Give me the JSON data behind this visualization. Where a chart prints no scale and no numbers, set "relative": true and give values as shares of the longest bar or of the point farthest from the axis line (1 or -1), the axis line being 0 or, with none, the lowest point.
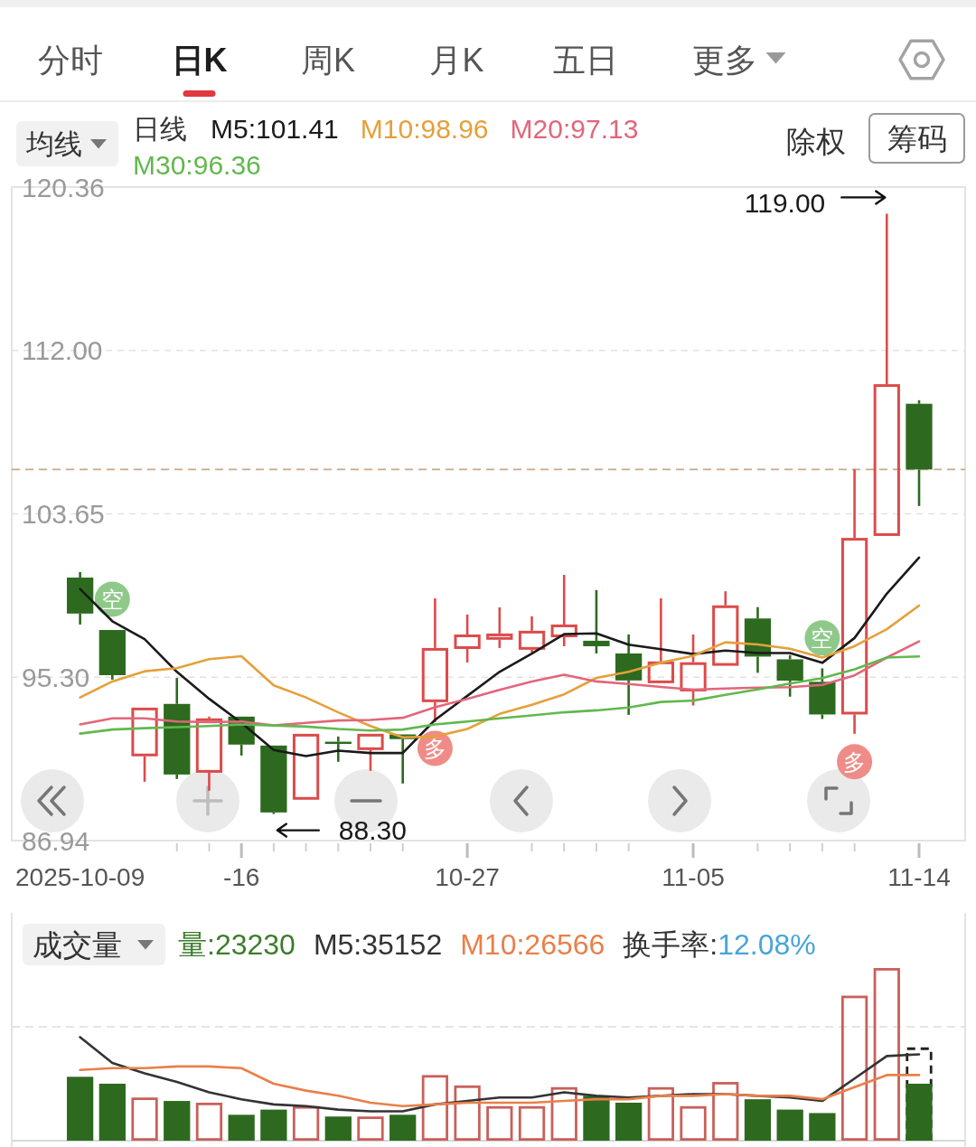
{
  "chart_data": [
    {
      "type": "other",
      "annotations": [
        "分时",
        "日K",
        "周K",
        "月K",
        "五日",
        "更多"
      ]
    },
    {
      "type": "candlestick",
      "categories": [
        "2025-10-09",
        null,
        null,
        null,
        null,
        "-16",
        null,
        null,
        null,
        null,
        null,
        null,
        "10-27",
        null,
        null,
        null,
        null,
        null,
        null,
        "11-05",
        null,
        null,
        null,
        null,
        null,
        null,
        "11-14"
      ],
      "ohlc": [
        [
          100.39,
          100.67,
          97.99,
          98.55
        ],
        [
          97.71,
          97.71,
          95.17,
          95.4
        ],
        [
          91.25,
          93.74,
          89.95,
          93.74
        ],
        [
          93.93,
          95.26,
          90.09,
          90.32
        ],
        [
          90.41,
          93.28,
          89.49,
          93.19
        ],
        [
          93.28,
          93.28,
          91.29,
          91.85
        ],
        [
          91.8,
          91.8,
          88.3,
          88.38
        ],
        [
          89.03,
          92.4,
          89.03,
          92.4
        ],
        [
          91.99,
          92.26,
          90.97,
          91.89
        ],
        [
          91.57,
          92.4,
          90.51,
          92.4
        ],
        [
          92.37,
          92.37,
          89.86,
          92.13
        ],
        [
          94.02,
          99.33,
          93.0,
          96.79
        ],
        [
          96.74,
          98.5,
          96.05,
          97.48
        ],
        [
          97.21,
          98.87,
          96.79,
          97.53
        ],
        [
          96.7,
          98.41,
          96.56,
          97.67
        ],
        [
          97.34,
          100.53,
          96.88,
          97.99
        ],
        [
          97.16,
          99.75,
          96.51,
          96.88
        ],
        [
          96.51,
          97.48,
          93.37,
          95.13
        ],
        [
          94.99,
          99.33,
          94.99,
          96.1
        ],
        [
          94.57,
          97.48,
          93.85,
          96.06
        ],
        [
          95.88,
          99.69,
          95.88,
          98.97
        ],
        [
          98.3,
          98.88,
          95.52,
          96.35
        ],
        [
          96.21,
          96.43,
          94.3,
          95.12
        ],
        [
          95.06,
          95.75,
          93.16,
          93.39
        ],
        [
          93.39,
          105.92,
          92.4,
          102.42
        ],
        [
          102.52,
          119.0,
          102.52,
          110.28
        ],
        [
          109.28,
          109.46,
          104.05,
          105.92
        ]
      ],
      "colors": [
        "#2d6a1f",
        "#2d6a1f",
        "#dc4b4b",
        "#2d6a1f",
        "#dc4b4b",
        "#2d6a1f",
        "#2d6a1f",
        "#dc4b4b",
        "#2d6a1f",
        "#dc4b4b",
        "#2d6a1f",
        "#dc4b4b",
        "#dc4b4b",
        "#dc4b4b",
        "#dc4b4b",
        "#dc4b4b",
        "#2d6a1f",
        "#2d6a1f",
        "#dc4b4b",
        "#dc4b4b",
        "#dc4b4b",
        "#2d6a1f",
        "#2d6a1f",
        "#2d6a1f",
        "#dc4b4b",
        "#dc4b4b",
        "#2d6a1f"
      ],
      "series": [
        {
          "type": "line",
          "name": "M5:101.41",
          "color": "#1a1a1a",
          "values": [
            99.81,
            98.16,
            97.24,
            95.57,
            94.19,
            92.96,
            91.57,
            91.26,
            91.54,
            91.42,
            91.42,
            93.11,
            94.34,
            95.57,
            96.5,
            97.5,
            97.54,
            96.96,
            96.73,
            96.48,
            96.66,
            96.53,
            96.53,
            96.03,
            97.3,
            99.57,
            101.41
          ]
        },
        {
          "type": "line",
          "name": "M10:98.96",
          "color": "#e5a03a",
          "values": [
            94.26,
            95.08,
            95.6,
            95.76,
            96.22,
            96.37,
            94.88,
            94.26,
            93.5,
            92.8,
            92.22,
            92.26,
            92.65,
            93.42,
            93.88,
            94.42,
            95.26,
            95.57,
            96.04,
            96.39,
            97.08,
            96.97,
            96.75,
            96.3,
            96.88,
            97.75,
            98.96
          ]
        },
        {
          "type": "line",
          "name": "M20:97.13",
          "color": "#e2667a",
          "values": [
            92.88,
            93.19,
            93.19,
            93.03,
            93.0,
            93.03,
            92.83,
            92.96,
            93.08,
            93.11,
            93.22,
            93.76,
            94.19,
            94.65,
            95.08,
            95.42,
            95.08,
            94.95,
            94.8,
            94.66,
            94.72,
            94.76,
            94.79,
            94.9,
            95.39,
            96.3,
            97.13
          ]
        },
        {
          "type": "line",
          "name": "M30:96.36",
          "color": "#62b84f",
          "values": [
            92.41,
            92.62,
            92.69,
            92.74,
            92.8,
            92.88,
            92.83,
            92.77,
            92.65,
            92.57,
            92.62,
            92.88,
            93.03,
            93.19,
            93.34,
            93.5,
            93.6,
            93.75,
            94.03,
            94.1,
            94.39,
            94.67,
            94.97,
            95.25,
            95.7,
            96.3,
            96.36
          ]
        },
        {
          "type": "scatter",
          "name": "空",
          "color": "#8ec98a",
          "marker": "circle",
          "values": [
            null,
            99.28,
            null,
            null,
            null,
            null,
            null,
            null,
            null,
            null,
            null,
            null,
            null,
            null,
            null,
            null,
            null,
            null,
            null,
            null,
            null,
            null,
            null,
            97.3,
            null,
            null,
            null
          ]
        },
        {
          "type": "scatter",
          "name": "多",
          "color": "#f08c88",
          "marker": "circle",
          "values": [
            null,
            null,
            null,
            null,
            null,
            null,
            null,
            null,
            null,
            null,
            null,
            91.66,
            null,
            null,
            null,
            null,
            null,
            null,
            null,
            null,
            null,
            null,
            null,
            null,
            90.97,
            null,
            null
          ]
        }
      ],
      "ylim": [
        86.94,
        120.36
      ],
      "yticks": [
        120.36,
        {
          "value": 112,
          "label": "112.00"
        },
        103.65,
        {
          "value": 95.3,
          "label": "95.30"
        },
        86.94
      ],
      "grid": "y",
      "ref_lines": [
        {
          "axis": "y",
          "value": 105.92,
          "color": "#c9a688",
          "line_style": "dashed"
        }
      ],
      "legend": "top left",
      "annotations": [
        "均线",
        "日线",
        "除权",
        "筹码",
        "119.00",
        "88.30"
      ]
    },
    {
      "type": "bar",
      "relative": true,
      "categories": [
        null,
        null,
        null,
        null,
        null,
        null,
        null,
        null,
        null,
        null,
        null,
        null,
        null,
        null,
        null,
        null,
        null,
        null,
        null,
        null,
        null,
        null,
        null,
        null,
        null,
        null,
        null
      ],
      "series": [
        {
          "type": "bar",
          "color": "#222222",
          "line_style": "dashed",
          "values": [
            null,
            null,
            null,
            null,
            null,
            null,
            null,
            null,
            null,
            null,
            null,
            null,
            null,
            null,
            null,
            null,
            null,
            null,
            null,
            null,
            null,
            null,
            null,
            null,
            null,
            null,
            0.54
          ]
        },
        {
          "type": "bar",
          "name": "量:23230",
          "color": "#3c7d2c",
          "colors": [
            "#2d6a1f",
            "#2d6a1f",
            "#c9605a",
            "#2d6a1f",
            "#c9605a",
            "#2d6a1f",
            "#2d6a1f",
            "#c9605a",
            "#2d6a1f",
            "#c9605a",
            "#2d6a1f",
            "#c9605a",
            "#c9605a",
            "#c9605a",
            "#c9605a",
            "#c9605a",
            "#2d6a1f",
            "#2d6a1f",
            "#c9605a",
            "#c9605a",
            "#c9605a",
            "#2d6a1f",
            "#2d6a1f",
            "#2d6a1f",
            "#c9605a",
            "#c9605a",
            "#2d6a1f"
          ],
          "values": [
            0.37,
            0.33,
            0.25,
            0.23,
            0.22,
            0.15,
            0.18,
            0.2,
            0.14,
            0.14,
            0.15,
            0.38,
            0.32,
            0.2,
            0.2,
            0.31,
            0.26,
            0.22,
            0.31,
            0.2,
            0.34,
            0.24,
            0.18,
            0.16,
            0.84,
            1,
            0.33
          ]
        },
        {
          "type": "line",
          "name": "M5:35152",
          "color": "#333333",
          "values": [
            0.6,
            0.45,
            0.39,
            0.34,
            0.28,
            0.24,
            0.21,
            0.2,
            0.18,
            0.17,
            0.17,
            0.21,
            0.23,
            0.25,
            0.25,
            0.28,
            0.26,
            0.25,
            0.26,
            0.27,
            0.27,
            0.26,
            0.25,
            0.23,
            0.36,
            0.49,
            0.5
          ]
        },
        {
          "type": "line",
          "name": "M10:26566",
          "color": "#e8804a",
          "values": [
            0.41,
            0.42,
            0.42,
            0.43,
            0.43,
            0.42,
            0.33,
            0.29,
            0.26,
            0.22,
            0.2,
            0.21,
            0.22,
            0.22,
            0.22,
            0.23,
            0.24,
            0.24,
            0.26,
            0.26,
            0.27,
            0.26,
            0.26,
            0.24,
            0.31,
            0.38,
            0.38
          ]
        }
      ],
      "ref_lines": [
        {
          "axis": "y",
          "value": 0.66,
          "color": "#dddddd",
          "line_style": "dashed"
        }
      ],
      "legend": "top left",
      "annotations": [
        "成交量",
        "换手率:12.08%"
      ]
    }
  ]
}
